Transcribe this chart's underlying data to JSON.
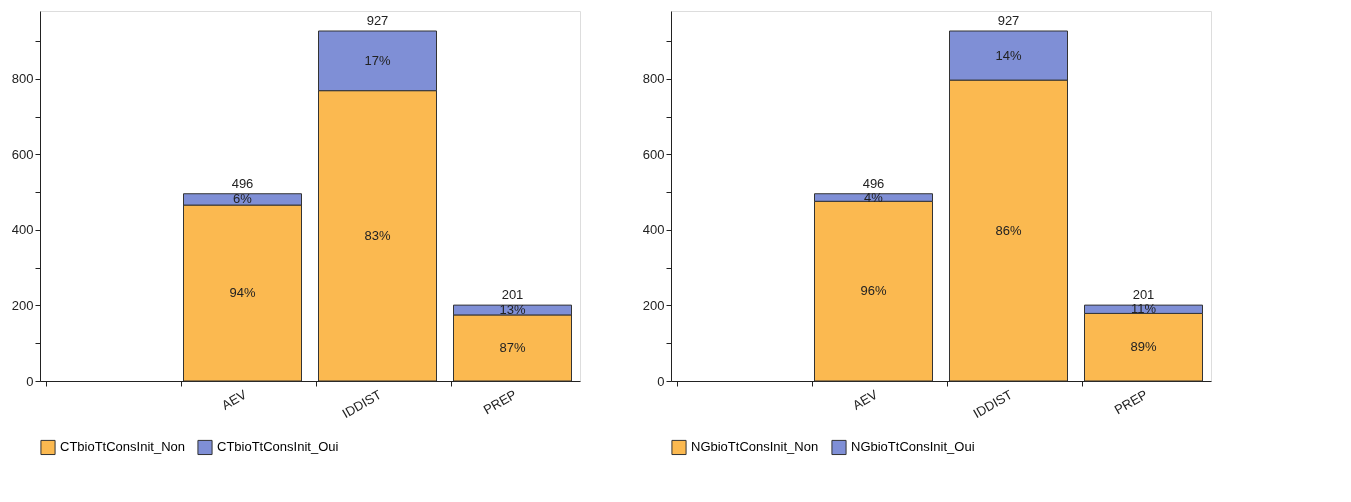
{
  "chart_data": [
    {
      "type": "bar",
      "stacked": true,
      "categories": [
        null,
        "AEV",
        "IDDIST",
        "PREP"
      ],
      "ylim": [
        0,
        980
      ],
      "yticks": [
        0,
        {
          "value": 100,
          "label": null
        },
        200,
        {
          "value": 300,
          "label": null
        },
        400,
        {
          "value": 500,
          "label": null
        },
        600,
        {
          "value": 700,
          "label": null
        },
        800,
        {
          "value": 900,
          "label": null
        }
      ],
      "grid": false,
      "legend": "bottom",
      "totals": [
        null,
        "496",
        "927",
        "201"
      ],
      "annotations": [
        "94%",
        "83%",
        "87%",
        "6%",
        "17%",
        "13%"
      ],
      "series": [
        {
          "name": "CTbioTtConsInit_Non",
          "color": "#fbb950",
          "values": [
            null,
            466,
            769,
            175
          ]
        },
        {
          "name": "CTbioTtConsInit_Oui",
          "color": "#7f8fd6",
          "values": [
            null,
            30,
            158,
            26
          ]
        }
      ]
    },
    {
      "type": "bar",
      "stacked": true,
      "categories": [
        null,
        "AEV",
        "IDDIST",
        "PREP"
      ],
      "ylim": [
        0,
        980
      ],
      "yticks": [
        0,
        {
          "value": 100,
          "label": null
        },
        200,
        {
          "value": 300,
          "label": null
        },
        400,
        {
          "value": 500,
          "label": null
        },
        600,
        {
          "value": 700,
          "label": null
        },
        800,
        {
          "value": 900,
          "label": null
        }
      ],
      "grid": false,
      "legend": "bottom",
      "totals": [
        null,
        "496",
        "927",
        "201"
      ],
      "annotations": [
        "96%",
        "86%",
        "89%",
        "4%",
        "14%",
        "11%"
      ],
      "series": [
        {
          "name": "NGbioTtConsInit_Non",
          "color": "#fbb950",
          "values": [
            null,
            476,
            797,
            179
          ]
        },
        {
          "name": "NGbioTtConsInit_Oui",
          "color": "#7f8fd6",
          "values": [
            null,
            20,
            130,
            22
          ]
        }
      ]
    }
  ]
}
